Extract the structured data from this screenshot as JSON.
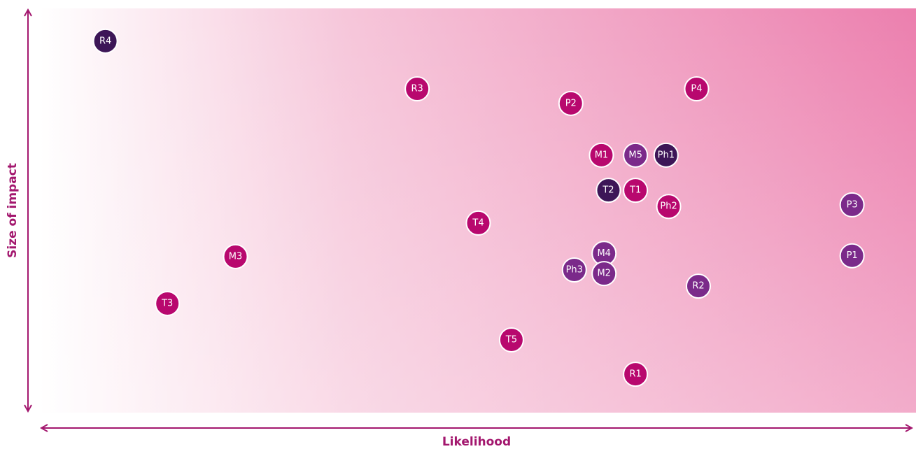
{
  "chart_data": {
    "type": "scatter",
    "x_label": "Likelihood",
    "y_label": "Size of impact",
    "xlim": [
      0,
      100
    ],
    "ylim": [
      0,
      100
    ],
    "labels": [
      "R4",
      "R3",
      "P2",
      "P4",
      "M1",
      "M5",
      "Ph1",
      "T2",
      "T1",
      "Ph2",
      "P3",
      "T4",
      "M3",
      "M4",
      "Ph3",
      "M2",
      "P1",
      "R2",
      "T3",
      "T5",
      "R1"
    ],
    "x": [
      7.5,
      43.2,
      60.8,
      75.2,
      64.3,
      68.2,
      71.7,
      65.1,
      68.2,
      72.0,
      93.0,
      50.2,
      22.4,
      64.6,
      61.2,
      64.6,
      93.0,
      75.4,
      14.6,
      54.0,
      68.2
    ],
    "y": [
      91.9,
      80.1,
      76.5,
      80.1,
      63.7,
      63.7,
      63.7,
      55.0,
      55.0,
      51.0,
      51.4,
      46.9,
      38.6,
      39.4,
      35.3,
      34.4,
      38.8,
      31.3,
      27.0,
      18.0,
      9.5
    ],
    "colors": [
      "#3d1657",
      "#b8086e",
      "#b8086e",
      "#b8086e",
      "#b8086e",
      "#7b2a8a",
      "#3d1657",
      "#3d1657",
      "#b8086e",
      "#b8086e",
      "#7b2a8a",
      "#b8086e",
      "#b8086e",
      "#7b2a8a",
      "#7b2a8a",
      "#7b2a8a",
      "#7b2a8a",
      "#7b2a8a",
      "#b8086e",
      "#b8086e",
      "#b8086e"
    ]
  }
}
